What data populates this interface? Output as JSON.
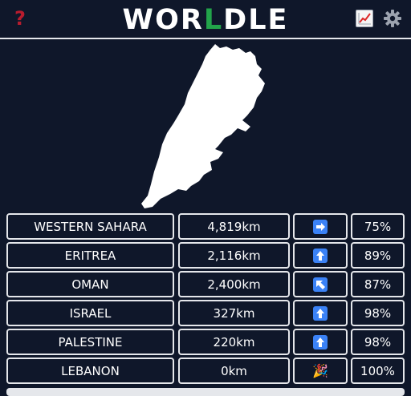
{
  "header": {
    "help_icon": "question-mark-icon",
    "title_before": "WOR",
    "title_accent": "L",
    "title_after": "DLE",
    "accent_color": "#22a34a",
    "stats_icon": "chart-increasing-icon",
    "settings_icon": "gear-icon"
  },
  "puzzle": {
    "shape_icon": "country-silhouette-lebanon"
  },
  "guesses": [
    {
      "country": "WESTERN SAHARA",
      "distance": "4,819km",
      "direction": "east",
      "direction_icon": "arrow-right-icon",
      "proximity": "75%"
    },
    {
      "country": "ERITREA",
      "distance": "2,116km",
      "direction": "north",
      "direction_icon": "arrow-up-icon",
      "proximity": "89%"
    },
    {
      "country": "OMAN",
      "distance": "2,400km",
      "direction": "north-west",
      "direction_icon": "arrow-up-left-icon",
      "proximity": "87%"
    },
    {
      "country": "ISRAEL",
      "distance": "327km",
      "direction": "north",
      "direction_icon": "arrow-up-icon",
      "proximity": "98%"
    },
    {
      "country": "PALESTINE",
      "distance": "220km",
      "direction": "north",
      "direction_icon": "arrow-up-icon",
      "proximity": "98%"
    },
    {
      "country": "LEBANON",
      "distance": "0km",
      "direction": "correct",
      "direction_icon": "party-popper-icon",
      "proximity": "100%"
    }
  ]
}
